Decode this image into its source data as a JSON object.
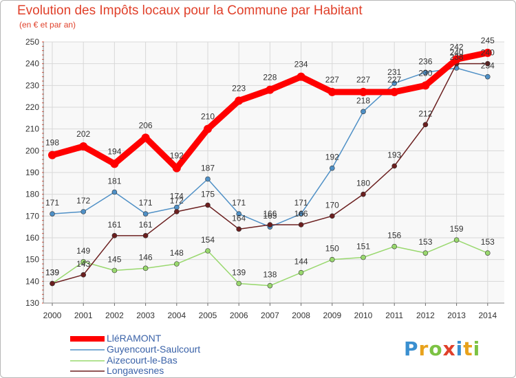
{
  "title": "Evolution des Impôts locaux pour la Commune par Habitant",
  "subtitle": "(en € et par an)",
  "logo": {
    "text": "Proxiti",
    "letter_colors": [
      "#3a8fd0",
      "#e8a21c",
      "#7cc243",
      "#e0402a",
      "#3a8fd0",
      "#e8a21c",
      "#7cc243"
    ]
  },
  "chart_data": {
    "type": "line",
    "title": "Evolution des Impôts locaux pour la Commune par Habitant",
    "subtitle": "(en € et par an)",
    "x": [
      "2000",
      "2001",
      "2002",
      "2003",
      "2004",
      "2005",
      "2006",
      "2007",
      "2008",
      "2009",
      "2010",
      "2011",
      "2012",
      "2013",
      "2014"
    ],
    "ylim": [
      130,
      250
    ],
    "yticks": [
      130,
      140,
      150,
      160,
      170,
      180,
      190,
      200,
      210,
      220,
      230,
      240,
      250
    ],
    "grid": true,
    "legend_position": "bottom-left",
    "series": [
      {
        "name": "LléRAMONT",
        "color": "#ff0000",
        "values": [
          198,
          202,
          194,
          206,
          192,
          210,
          223,
          228,
          234,
          227,
          227,
          227,
          230,
          242,
          245
        ]
      },
      {
        "name": "Guyencourt-Saulcourt",
        "color": "#4f90c6",
        "values": [
          171,
          172,
          181,
          171,
          174,
          187,
          171,
          165,
          171,
          192,
          218,
          231,
          236,
          238,
          234
        ]
      },
      {
        "name": "Aizecourt-le-Bas",
        "color": "#99d86e",
        "values": [
          139,
          149,
          145,
          146,
          148,
          154,
          139,
          138,
          144,
          150,
          151,
          156,
          153,
          159,
          153
        ]
      },
      {
        "name": "Longavesnes",
        "color": "#6b1f1f",
        "values": [
          139,
          143,
          161,
          161,
          172,
          175,
          164,
          166,
          166,
          170,
          180,
          193,
          212,
          240,
          240
        ]
      }
    ],
    "data_labels": [
      {
        "series": 0,
        "labels": [
          "198",
          "202",
          "194",
          "206",
          "192",
          "210",
          "223",
          "228",
          "234",
          "227",
          "227",
          "227",
          "230",
          "242",
          "245"
        ]
      },
      {
        "series": 1,
        "labels": [
          "171",
          "172",
          "181",
          "171",
          "174",
          "187",
          "171",
          "165",
          "171",
          "192",
          "218",
          "231",
          "236",
          "238",
          "234"
        ]
      },
      {
        "series": 2,
        "labels": [
          "139",
          "149",
          "145",
          "146",
          "148",
          "154",
          "139",
          "138",
          "144",
          "150",
          "151",
          "156",
          "153",
          "159",
          "153"
        ]
      },
      {
        "series": 3,
        "labels": [
          "139",
          "143",
          "161",
          "161",
          "172",
          "175",
          "164",
          "166",
          "166",
          "170",
          "180",
          "193",
          "212",
          "240",
          "240"
        ]
      }
    ]
  }
}
